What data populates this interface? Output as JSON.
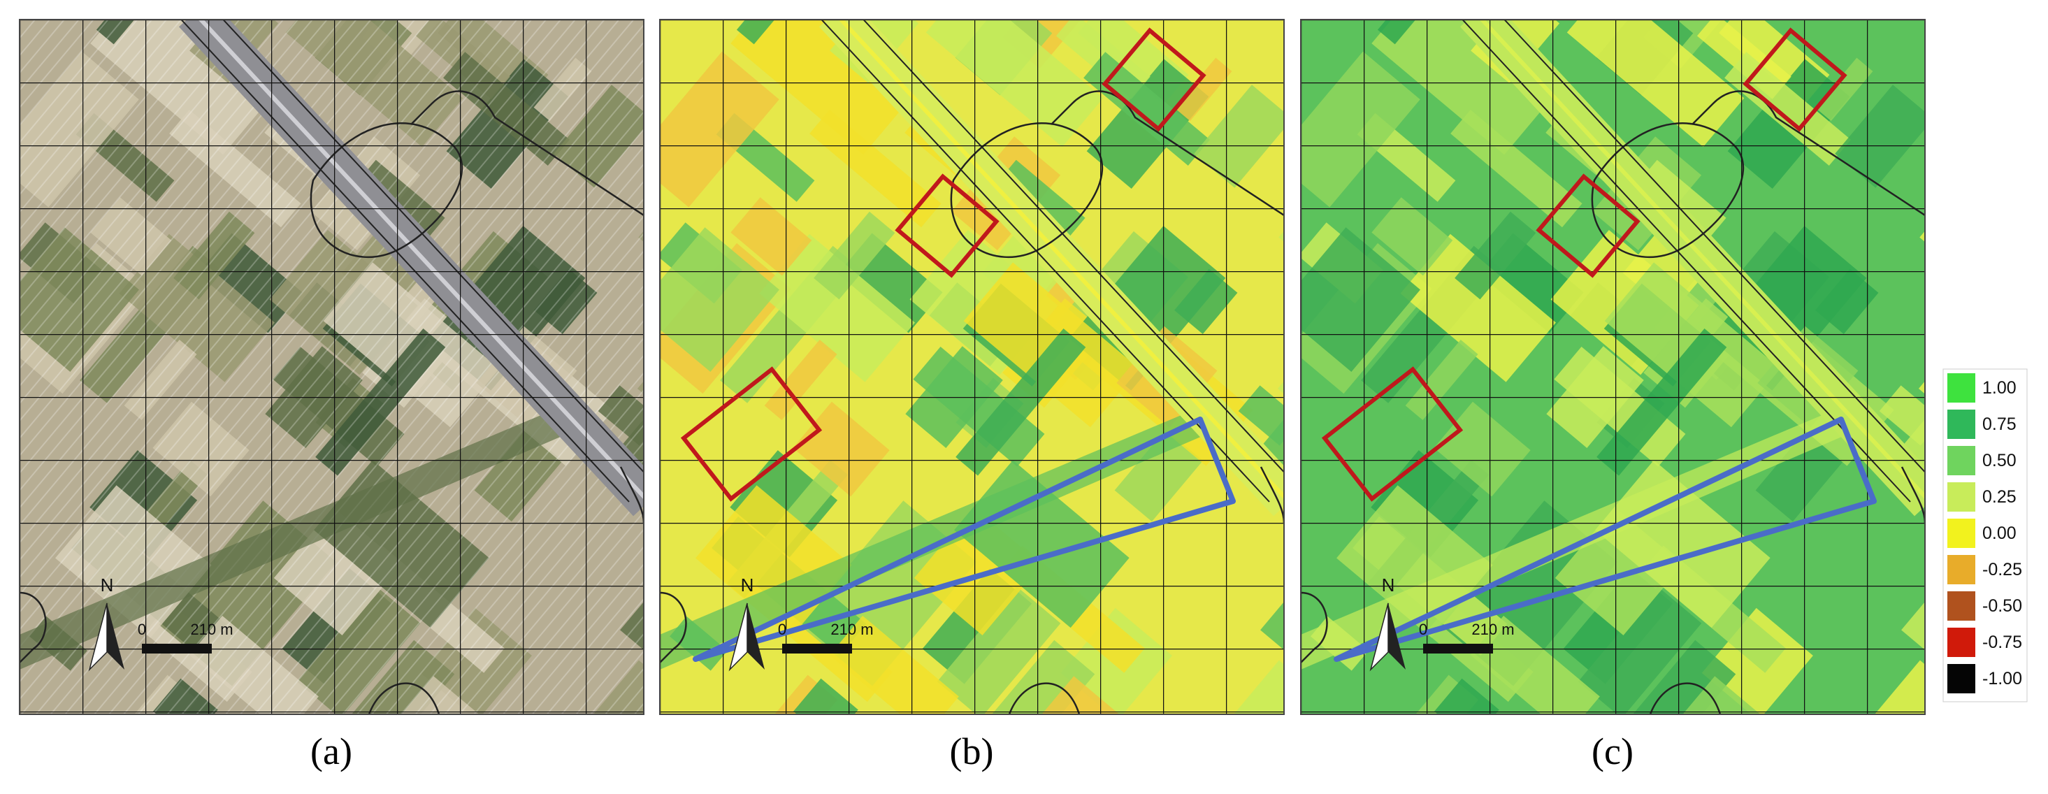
{
  "panels": [
    {
      "label": "(a)",
      "north": "N",
      "scale_start": "0",
      "scale_end": "210 m"
    },
    {
      "label": "(b)",
      "north": "N",
      "scale_start": "0",
      "scale_end": "210 m"
    },
    {
      "label": "(c)",
      "north": "N",
      "scale_start": "0",
      "scale_end": "210 m"
    }
  ],
  "legend": {
    "items": [
      {
        "label": "1.00",
        "color": "#3ee23e"
      },
      {
        "label": "0.75",
        "color": "#2fb85a"
      },
      {
        "label": "0.50",
        "color": "#6fd45e"
      },
      {
        "label": "0.25",
        "color": "#c8ec5a"
      },
      {
        "label": "0.00",
        "color": "#f2f21e"
      },
      {
        "label": "-0.25",
        "color": "#e8ac2a"
      },
      {
        "label": "-0.50",
        "color": "#b0521e"
      },
      {
        "label": "-0.75",
        "color": "#d01a0a"
      },
      {
        "label": "-1.00",
        "color": "#050505"
      }
    ]
  }
}
